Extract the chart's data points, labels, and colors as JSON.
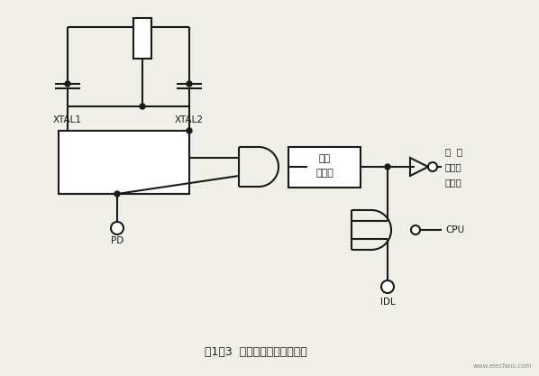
{
  "title": "图1－3  待机和掉电的硬件结构",
  "bg_color": "#f0efe8",
  "line_color": "#1a1a1a",
  "fig_width": 5.98,
  "fig_height": 4.17,
  "dpi": 100,
  "xtal1": "XTAL1",
  "xtal2": "XTAL2",
  "pd_label": "PD",
  "clk_label1": "时钟",
  "clk_label2": "发生器",
  "out1": "中  断",
  "out2": "串行口",
  "out3": "定时器",
  "cpu_label": "CPU",
  "idl_label": "IDL",
  "watermark": "www.elecfans.com"
}
